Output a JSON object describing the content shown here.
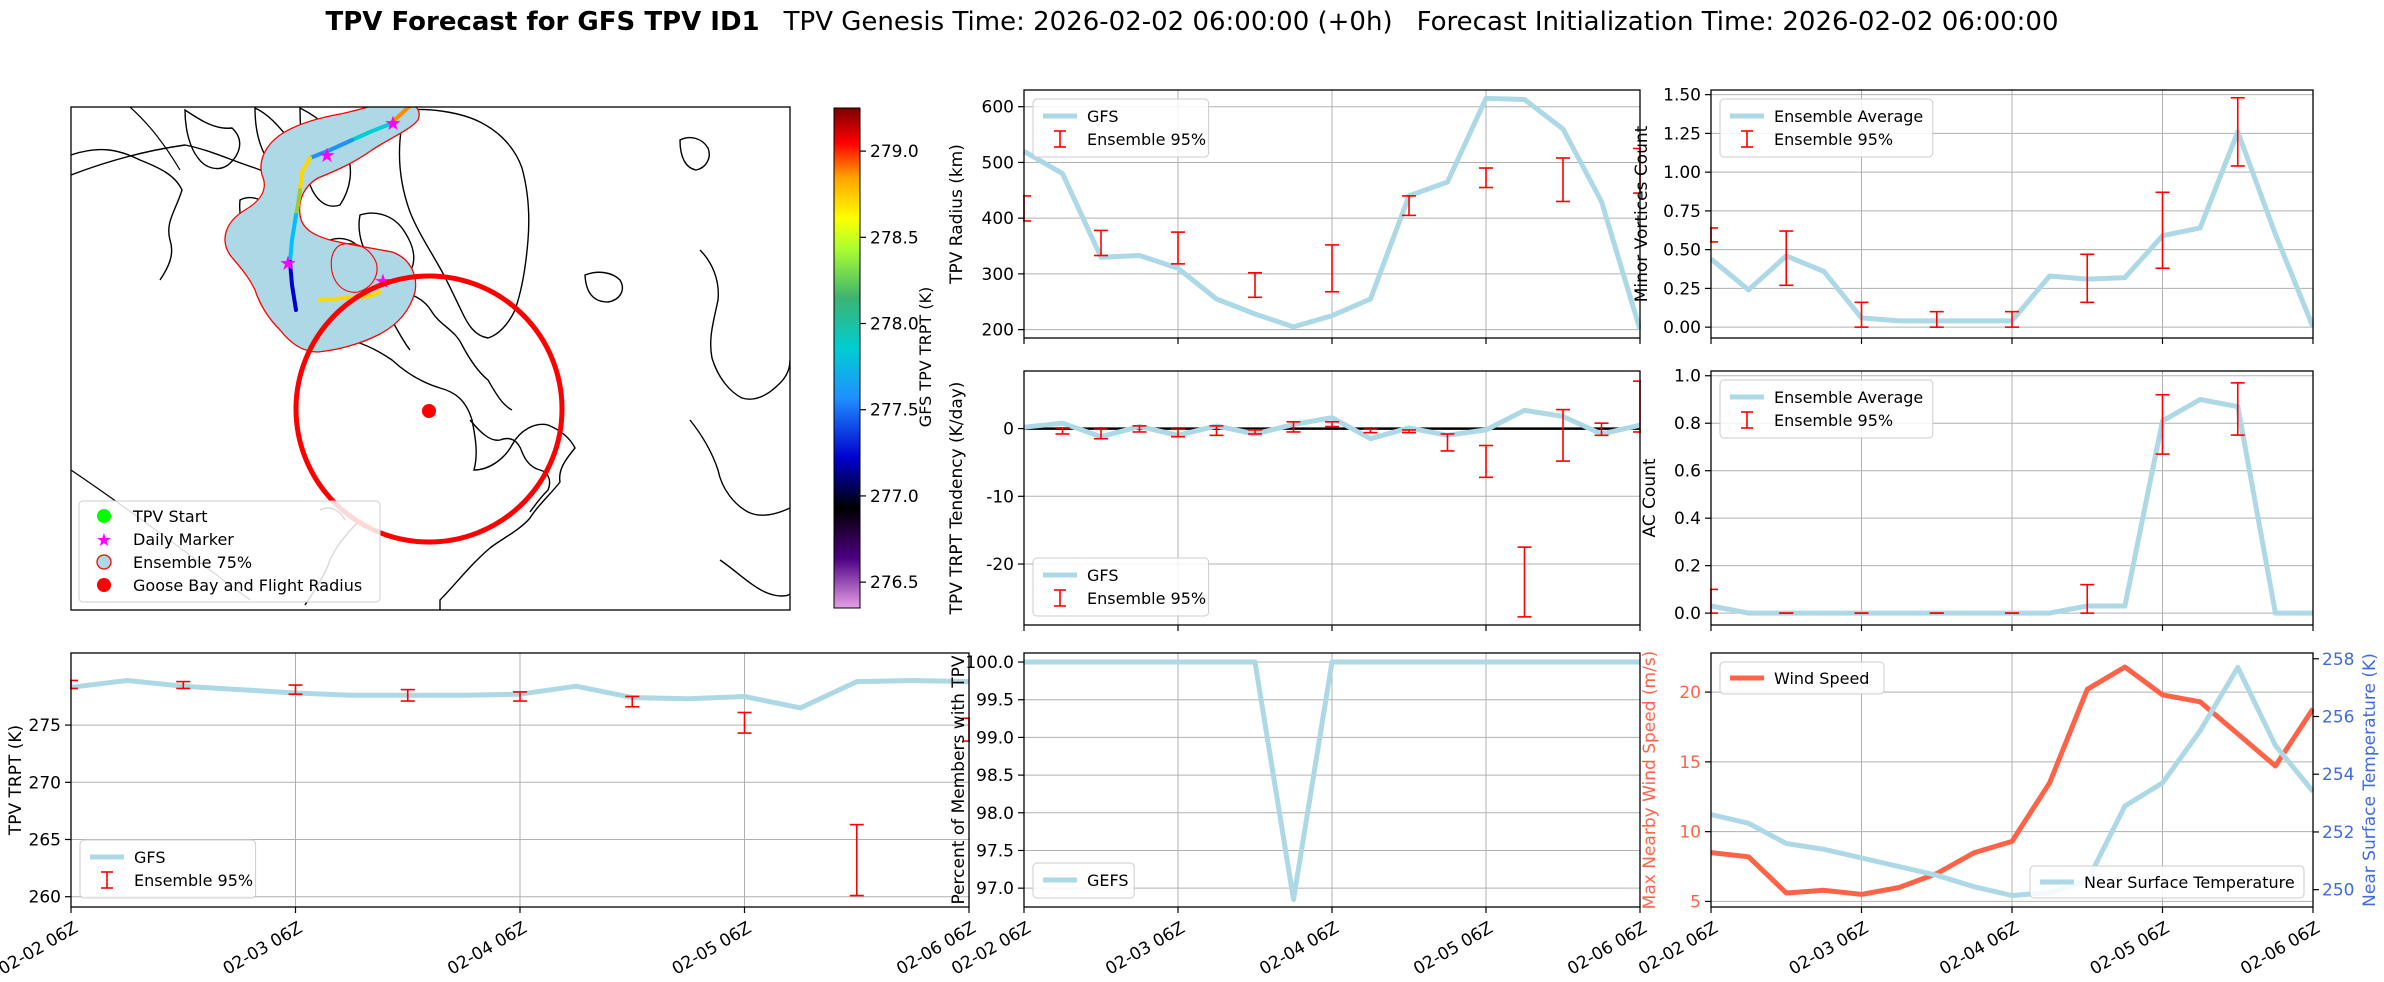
{
  "title": {
    "bold": "TPV Forecast for GFS TPV ID1",
    "genesis": "TPV Genesis Time: 2026-02-02 06:00:00 (+0h)",
    "init": "Forecast Initialization Time: 2026-02-02 06:00:00"
  },
  "map": {
    "legend": [
      "TPV Start",
      "Daily Marker",
      "Ensemble 75%",
      "Goose Bay and Flight Radius"
    ],
    "colorbar": {
      "label": "GFS TPV TRPT (K)",
      "min": 276.35,
      "max": 279.25,
      "ticks": [
        276.5,
        277.0,
        277.5,
        278.0,
        278.5,
        279.0
      ],
      "tick_labels": [
        "276.5",
        "277.0",
        "277.5",
        "278.0",
        "278.5",
        "279.0"
      ]
    }
  },
  "colors": {
    "gfs_line": "#add8e6",
    "ensemble": "#ff0000",
    "wind": "#ff6347",
    "temp_axis": "#4169e1",
    "zero_line": "#000000",
    "grid": "#b0b0b0"
  },
  "chart_data": [
    {
      "id": "radius",
      "type": "line",
      "ylabel": "TPV Radius (km)",
      "ylim": [
        185,
        630
      ],
      "yticks": [
        200,
        300,
        400,
        500,
        600
      ],
      "xticks": [
        "02-02 06Z",
        "02-03 06Z",
        "02-04 06Z",
        "02-05 06Z",
        "02-06 06Z"
      ],
      "xticklabels_visible": false,
      "legend_items": [
        "GFS",
        "Ensemble 95%"
      ],
      "legend_pos": "top-left",
      "series": [
        {
          "name": "GFS",
          "kind": "line",
          "x": [
            0,
            0.25,
            0.5,
            0.75,
            1,
            1.25,
            1.5,
            1.75,
            2,
            2.25,
            2.5,
            2.75,
            3,
            3.25,
            3.5,
            3.75,
            4
          ],
          "values": [
            520,
            480,
            330,
            333,
            310,
            255,
            228,
            205,
            225,
            255,
            440,
            465,
            615,
            613,
            560,
            430,
            200
          ]
        }
      ],
      "ensemble": [
        {
          "x": 0,
          "lo": 395,
          "hi": 440
        },
        {
          "x": 0.5,
          "lo": 333,
          "hi": 378
        },
        {
          "x": 1,
          "lo": 318,
          "hi": 375
        },
        {
          "x": 1.5,
          "lo": 258,
          "hi": 302
        },
        {
          "x": 2,
          "lo": 268,
          "hi": 352
        },
        {
          "x": 2.5,
          "lo": 405,
          "hi": 440
        },
        {
          "x": 3,
          "lo": 455,
          "hi": 490
        },
        {
          "x": 3.5,
          "lo": 430,
          "hi": 508
        },
        {
          "x": 4,
          "lo": 445,
          "hi": 525
        }
      ]
    },
    {
      "id": "minor",
      "type": "line",
      "ylabel": "Minor Vortices Count",
      "ylim": [
        -0.07,
        1.53
      ],
      "yticks": [
        0.0,
        0.25,
        0.5,
        0.75,
        1.0,
        1.25,
        1.5
      ],
      "ytick_labels": [
        "0.00",
        "0.25",
        "0.50",
        "0.75",
        "1.00",
        "1.25",
        "1.50"
      ],
      "xticks": [
        "02-02 06Z",
        "02-03 06Z",
        "02-04 06Z",
        "02-05 06Z",
        "02-06 06Z"
      ],
      "xticklabels_visible": false,
      "legend_items": [
        "Ensemble Average",
        "Ensemble 95%"
      ],
      "legend_pos": "top-left",
      "series": [
        {
          "name": "Ensemble Average",
          "kind": "line",
          "x": [
            0,
            0.25,
            0.5,
            0.75,
            1,
            1.25,
            1.5,
            1.75,
            2,
            2.25,
            2.5,
            2.75,
            3,
            3.25,
            3.5,
            3.75,
            4
          ],
          "values": [
            0.44,
            0.24,
            0.46,
            0.36,
            0.06,
            0.04,
            0.04,
            0.04,
            0.04,
            0.33,
            0.31,
            0.32,
            0.59,
            0.64,
            1.26,
            0.6,
            0.0
          ]
        }
      ],
      "ensemble": [
        {
          "x": 0,
          "lo": 0.55,
          "hi": 0.64
        },
        {
          "x": 0.5,
          "lo": 0.27,
          "hi": 0.62
        },
        {
          "x": 1,
          "lo": 0.0,
          "hi": 0.16
        },
        {
          "x": 1.5,
          "lo": 0.0,
          "hi": 0.1
        },
        {
          "x": 2,
          "lo": 0.0,
          "hi": 0.1
        },
        {
          "x": 2.5,
          "lo": 0.16,
          "hi": 0.47
        },
        {
          "x": 3,
          "lo": 0.38,
          "hi": 0.87
        },
        {
          "x": 3.5,
          "lo": 1.04,
          "hi": 1.48
        }
      ]
    },
    {
      "id": "tendency",
      "type": "line",
      "ylabel": "TPV TRPT Tendency (K/day)",
      "ylim": [
        -29,
        8.5
      ],
      "yticks": [
        -20,
        -10,
        0
      ],
      "xticks": [
        "02-02 06Z",
        "02-03 06Z",
        "02-04 06Z",
        "02-05 06Z",
        "02-06 06Z"
      ],
      "xticklabels_visible": false,
      "zero_line": 0,
      "legend_items": [
        "GFS",
        "Ensemble 95%"
      ],
      "legend_pos": "bottom-left",
      "series": [
        {
          "name": "GFS",
          "kind": "line",
          "x": [
            0,
            0.25,
            0.5,
            0.75,
            1,
            1.25,
            1.5,
            1.75,
            2,
            2.25,
            2.5,
            2.75,
            3,
            3.25,
            3.5,
            3.75,
            4
          ],
          "values": [
            0.2,
            0.8,
            -1.2,
            0.3,
            -1.0,
            0.4,
            -0.8,
            0.6,
            1.6,
            -1.5,
            0.1,
            -1.0,
            -0.2,
            2.7,
            1.8,
            -0.8,
            0.5
          ]
        }
      ],
      "ensemble": [
        {
          "x": 0.25,
          "lo": -0.8,
          "hi": 0.1
        },
        {
          "x": 0.5,
          "lo": -1.5,
          "hi": -0.1
        },
        {
          "x": 0.75,
          "lo": -0.5,
          "hi": 0.4
        },
        {
          "x": 1,
          "lo": -1.2,
          "hi": -0.1
        },
        {
          "x": 1.25,
          "lo": -1.0,
          "hi": 0.4
        },
        {
          "x": 1.5,
          "lo": -0.8,
          "hi": -0.2
        },
        {
          "x": 1.75,
          "lo": -0.5,
          "hi": 1.0
        },
        {
          "x": 2,
          "lo": 0.3,
          "hi": 1.0
        },
        {
          "x": 2.25,
          "lo": -0.6,
          "hi": -0.1
        },
        {
          "x": 2.5,
          "lo": -0.6,
          "hi": -0.2
        },
        {
          "x": 2.75,
          "lo": -3.3,
          "hi": -0.8
        },
        {
          "x": 3,
          "lo": -7.2,
          "hi": -2.5
        },
        {
          "x": 3.25,
          "lo": -27.8,
          "hi": -17.5
        },
        {
          "x": 3.5,
          "lo": -4.8,
          "hi": 2.8
        },
        {
          "x": 3.75,
          "lo": -1.0,
          "hi": 0.8
        },
        {
          "x": 4,
          "lo": -0.5,
          "hi": 7.0
        }
      ]
    },
    {
      "id": "ac",
      "type": "line",
      "ylabel": "AC Count",
      "ylim": [
        -0.05,
        1.02
      ],
      "yticks": [
        0.0,
        0.2,
        0.4,
        0.6,
        0.8,
        1.0
      ],
      "ytick_labels": [
        "0.0",
        "0.2",
        "0.4",
        "0.6",
        "0.8",
        "1.0"
      ],
      "xticks": [
        "02-02 06Z",
        "02-03 06Z",
        "02-04 06Z",
        "02-05 06Z",
        "02-06 06Z"
      ],
      "xticklabels_visible": false,
      "legend_items": [
        "Ensemble Average",
        "Ensemble 95%"
      ],
      "legend_pos": "top-left",
      "series": [
        {
          "name": "Ensemble Average",
          "kind": "line",
          "x": [
            0,
            0.25,
            0.5,
            0.75,
            1,
            1.25,
            1.5,
            1.75,
            2,
            2.25,
            2.5,
            2.75,
            3,
            3.25,
            3.5,
            3.75,
            4
          ],
          "values": [
            0.03,
            0.0,
            0.0,
            0.0,
            0.0,
            0.0,
            0.0,
            0.0,
            0.0,
            0.0,
            0.03,
            0.03,
            0.81,
            0.9,
            0.87,
            0.0,
            0.0
          ]
        }
      ],
      "ensemble": [
        {
          "x": 0,
          "lo": 0.0,
          "hi": 0.1
        },
        {
          "x": 0.5,
          "lo": 0.0,
          "hi": 0.0
        },
        {
          "x": 1,
          "lo": 0.0,
          "hi": 0.0
        },
        {
          "x": 1.5,
          "lo": 0.0,
          "hi": 0.0
        },
        {
          "x": 2,
          "lo": 0.0,
          "hi": 0.0
        },
        {
          "x": 2.5,
          "lo": 0.0,
          "hi": 0.12
        },
        {
          "x": 3,
          "lo": 0.67,
          "hi": 0.92
        },
        {
          "x": 3.5,
          "lo": 0.75,
          "hi": 0.97
        }
      ]
    },
    {
      "id": "trpt",
      "type": "line",
      "ylabel": "TPV TRPT (K)",
      "ylim": [
        259.1,
        281.3
      ],
      "yticks": [
        260,
        265,
        270,
        275
      ],
      "xticks": [
        "02-02 06Z",
        "02-03 06Z",
        "02-04 06Z",
        "02-05 06Z",
        "02-06 06Z"
      ],
      "xticklabels_visible": true,
      "legend_items": [
        "GFS",
        "Ensemble 95%"
      ],
      "legend_pos": "bottom-left",
      "series": [
        {
          "name": "GFS",
          "kind": "line",
          "x": [
            0,
            0.25,
            0.5,
            0.75,
            1,
            1.25,
            1.5,
            1.75,
            2,
            2.25,
            2.5,
            2.75,
            3,
            3.25,
            3.5,
            3.75,
            4
          ],
          "values": [
            278.3,
            278.9,
            278.4,
            278.1,
            277.8,
            277.6,
            277.6,
            277.6,
            277.7,
            278.4,
            277.4,
            277.3,
            277.5,
            276.5,
            278.8,
            278.9,
            278.8
          ]
        }
      ],
      "ensemble": [
        {
          "x": 0,
          "lo": 278.2,
          "hi": 278.9
        },
        {
          "x": 0.5,
          "lo": 278.2,
          "hi": 278.8
        },
        {
          "x": 1,
          "lo": 277.7,
          "hi": 278.5
        },
        {
          "x": 1.5,
          "lo": 277.1,
          "hi": 278.1
        },
        {
          "x": 2,
          "lo": 277.1,
          "hi": 277.9
        },
        {
          "x": 2.5,
          "lo": 276.6,
          "hi": 277.5
        },
        {
          "x": 3,
          "lo": 274.3,
          "hi": 276.1
        },
        {
          "x": 3.5,
          "lo": 260.1,
          "hi": 266.3
        },
        {
          "x": 4,
          "lo": 273.6,
          "hi": 275.6
        }
      ]
    },
    {
      "id": "members",
      "type": "line",
      "ylabel": "Percent of Members with TPV",
      "ylim": [
        96.75,
        100.12
      ],
      "yticks": [
        97.0,
        97.5,
        98.0,
        98.5,
        99.0,
        99.5,
        100.0
      ],
      "ytick_labels": [
        "97.0",
        "97.5",
        "98.0",
        "98.5",
        "99.0",
        "99.5",
        "100.0"
      ],
      "xticks": [
        "02-02 06Z",
        "02-03 06Z",
        "02-04 06Z",
        "02-05 06Z",
        "02-06 06Z"
      ],
      "xticklabels_visible": true,
      "legend_items": [
        "GEFS"
      ],
      "legend_pos": "bottom-left",
      "series": [
        {
          "name": "GEFS",
          "kind": "line",
          "x": [
            0,
            0.25,
            0.5,
            0.75,
            1,
            1.25,
            1.5,
            1.75,
            2,
            2.25,
            2.5,
            2.75,
            3,
            3.25,
            3.5,
            3.75,
            4
          ],
          "values": [
            100,
            100,
            100,
            100,
            100,
            100,
            100,
            96.85,
            100,
            100,
            100,
            100,
            100,
            100,
            100,
            100,
            100
          ]
        }
      ],
      "ensemble": []
    },
    {
      "id": "wind",
      "type": "line",
      "ylabel": "Max Nearby Wind Speed (m/s)",
      "ylabel_right": "Near Surface Temperature (K)",
      "ylim": [
        4.6,
        22.8
      ],
      "yticks": [
        5,
        10,
        15,
        20
      ],
      "ylim_right": [
        249.4,
        258.2
      ],
      "yticks_right": [
        250,
        252,
        254,
        256,
        258
      ],
      "xticks": [
        "02-02 06Z",
        "02-03 06Z",
        "02-04 06Z",
        "02-05 06Z",
        "02-06 06Z"
      ],
      "xticklabels_visible": true,
      "legend_items": [
        "Wind Speed",
        "Near Surface Temperature"
      ],
      "series": [
        {
          "name": "Wind Speed",
          "kind": "line",
          "axis": "left",
          "x": [
            0,
            0.25,
            0.5,
            0.75,
            1,
            1.25,
            1.5,
            1.75,
            2,
            2.25,
            2.5,
            2.75,
            3,
            3.25,
            3.5,
            3.75,
            4
          ],
          "values": [
            8.5,
            8.2,
            5.6,
            5.8,
            5.5,
            6.0,
            7.0,
            8.5,
            9.3,
            13.5,
            20.2,
            21.8,
            19.8,
            19.3,
            17.0,
            14.7,
            18.8
          ]
        },
        {
          "name": "Near Surface Temperature",
          "kind": "line",
          "axis": "right",
          "x": [
            0,
            0.25,
            0.5,
            0.75,
            1,
            1.25,
            1.5,
            1.75,
            2,
            2.25,
            2.5,
            2.75,
            3,
            3.25,
            3.5,
            3.75,
            4
          ],
          "values": [
            252.6,
            252.3,
            251.6,
            251.4,
            251.1,
            250.8,
            250.5,
            250.1,
            249.8,
            249.9,
            250.3,
            252.9,
            253.7,
            255.5,
            257.7,
            255.0,
            253.4
          ]
        }
      ],
      "ensemble": []
    }
  ]
}
